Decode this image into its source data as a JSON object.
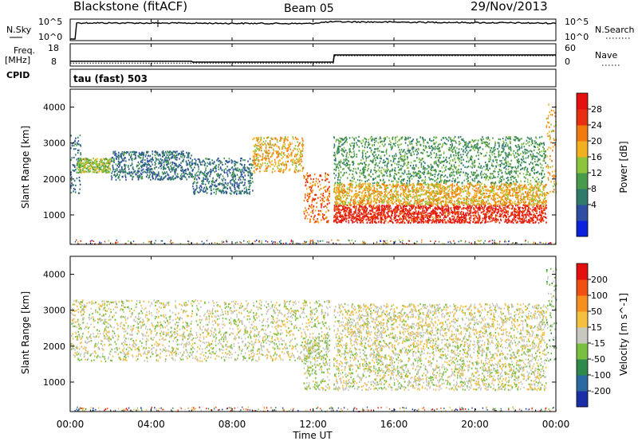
{
  "header": {
    "station": "Blackstone (fitACF)",
    "beam": "Beam 05",
    "date": "29/Nov/2013"
  },
  "sky_panel": {
    "left_label": "N.Sky",
    "right_label": "N.Search",
    "left_ticks": [
      "10^5",
      "10^0"
    ],
    "right_ticks": [
      "10^5",
      "10^0"
    ]
  },
  "freq_panel": {
    "left_label_1": "Freq.",
    "left_label_2": "[MHz]",
    "right_label": "Nave",
    "left_ticks": [
      "18",
      "8"
    ],
    "right_ticks": [
      "60",
      "0"
    ]
  },
  "cpid_panel": {
    "label": "CPID",
    "text": "tau (fast) 503"
  },
  "power_panel": {
    "ylabel": "Slant Range [km]",
    "yticks": [
      "4000",
      "3000",
      "2000",
      "1000"
    ],
    "colorbar_label": "Power [dB]",
    "colorbar_ticks": [
      "28",
      "24",
      "20",
      "16",
      "12",
      "8",
      "4"
    ],
    "colors": [
      "#0a22dc",
      "#2f4ea2",
      "#2f7a6a",
      "#4a9a4c",
      "#8cc43c",
      "#f0b020",
      "#f07a10",
      "#e83010",
      "#e41010"
    ]
  },
  "velocity_panel": {
    "ylabel": "Slant Range [km]",
    "yticks": [
      "4000",
      "3000",
      "2000",
      "1000"
    ],
    "colorbar_label": "Velocity [m s^-1]",
    "colorbar_ticks": [
      "200",
      "100",
      "50",
      "15",
      "-15",
      "-50",
      "-100",
      "-200"
    ],
    "colors": [
      "#1a2ea8",
      "#2a6aa0",
      "#2e8a4a",
      "#7ac040",
      "#c8c8c0",
      "#f5c040",
      "#f59020",
      "#f05010",
      "#e41010"
    ]
  },
  "x_axis": {
    "xlabel": "Time UT",
    "ticks": [
      "00:00",
      "04:00",
      "08:00",
      "12:00",
      "16:00",
      "20:00",
      "00:00"
    ]
  },
  "chart_data": {
    "type": "heatmap",
    "title": "Blackstone (fitACF)  Beam 05  29/Nov/2013",
    "xlabel": "Time UT",
    "ylabel": "Slant Range [km]",
    "xlim": [
      "00:00",
      "24:00"
    ],
    "ylim": [
      180,
      4500
    ],
    "series": [
      {
        "name": "Power [dB]",
        "clim": [
          0,
          32
        ],
        "scatter_bands": [
          {
            "t_start": 0.0,
            "t_end": 0.5,
            "range_km": [
              1600,
              3300
            ],
            "value": 8
          },
          {
            "t_start": 0.3,
            "t_end": 2.0,
            "range_km": [
              2200,
              2600
            ],
            "value": 16
          },
          {
            "t_start": 2.0,
            "t_end": 6.0,
            "range_km": [
              2000,
              2800
            ],
            "value": 8
          },
          {
            "t_start": 6.0,
            "t_end": 9.0,
            "range_km": [
              1600,
              2600
            ],
            "value": 8
          },
          {
            "t_start": 9.0,
            "t_end": 11.5,
            "range_km": [
              2200,
              3200
            ],
            "value": 20
          },
          {
            "t_start": 11.5,
            "t_end": 12.8,
            "range_km": [
              800,
              2200
            ],
            "value": 24
          },
          {
            "t_start": 13.0,
            "t_end": 23.5,
            "range_km": [
              800,
              1300
            ],
            "value": 28
          },
          {
            "t_start": 13.0,
            "t_end": 23.5,
            "range_km": [
              1300,
              1900
            ],
            "value": 20
          },
          {
            "t_start": 13.0,
            "t_end": 23.5,
            "range_km": [
              1900,
              3200
            ],
            "value": 12
          },
          {
            "t_start": 23.5,
            "t_end": 24.0,
            "range_km": [
              1600,
              4200
            ],
            "value": 20
          }
        ]
      },
      {
        "name": "Velocity [m s^-1]",
        "clim": [
          -250,
          250
        ],
        "scatter_bands": [
          {
            "t_start": 0.0,
            "t_end": 12.8,
            "range_km": [
              1600,
              3300
            ],
            "value": 0
          },
          {
            "t_start": 11.5,
            "t_end": 12.8,
            "range_km": [
              800,
              2200
            ],
            "value": -15
          },
          {
            "t_start": 13.0,
            "t_end": 23.5,
            "range_km": [
              800,
              2000
            ],
            "value": 0
          },
          {
            "t_start": 13.0,
            "t_end": 23.5,
            "range_km": [
              2000,
              3200
            ],
            "value": 15
          },
          {
            "t_start": 23.5,
            "t_end": 24.0,
            "range_km": [
              1600,
              4200
            ],
            "value": -50
          }
        ]
      }
    ],
    "aux_series": [
      {
        "name": "N.Sky",
        "t": [
          0,
          0.2,
          0.25,
          12.0,
          13.0,
          24.0
        ],
        "values": [
          1,
          1,
          40000,
          30000,
          80000,
          30000
        ]
      },
      {
        "name": "Freq.",
        "t": [
          0,
          6.0,
          6.05,
          13.0,
          13.05,
          24.0
        ],
        "values": [
          10,
          10,
          9.5,
          9.5,
          14,
          14
        ]
      },
      {
        "name": "Nave",
        "t": [
          0,
          13.0,
          13.05,
          24.0
        ],
        "values": [
          5,
          5,
          30,
          30
        ]
      }
    ]
  }
}
